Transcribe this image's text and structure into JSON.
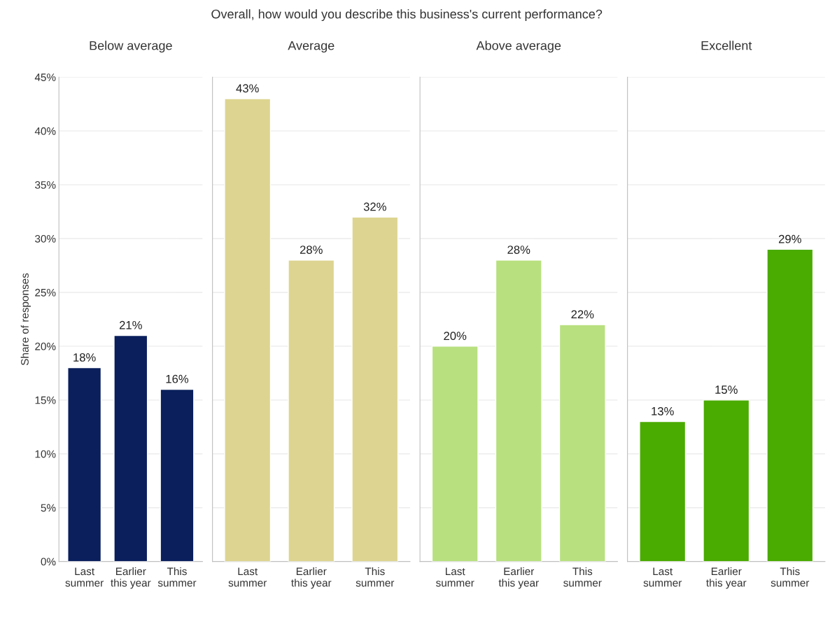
{
  "chart_data": [
    {
      "type": "bar",
      "subtitle": "Below average",
      "ylabel": "Share of responses",
      "categories": [
        "Last summer",
        "Earlier this year",
        "This summer"
      ],
      "values": [
        18,
        21,
        16
      ],
      "value_labels": [
        "18%",
        "21%",
        "16%"
      ],
      "color": "#0a1f5c",
      "ylim": [
        0,
        45
      ],
      "yticks": [
        {
          "value": 0,
          "label": "0%"
        },
        {
          "value": 5,
          "label": "5%"
        },
        {
          "value": 10,
          "label": "10%"
        },
        {
          "value": 15,
          "label": "15%"
        },
        {
          "value": 20,
          "label": "20%"
        },
        {
          "value": 25,
          "label": "25%"
        },
        {
          "value": 30,
          "label": "30%"
        },
        {
          "value": 35,
          "label": "35%"
        },
        {
          "value": 40,
          "label": "40%"
        },
        {
          "value": 45,
          "label": "45%"
        }
      ],
      "grid": "y"
    },
    {
      "type": "bar",
      "title": "Overall, how would you describe this business's current performance?",
      "subtitle": "Average",
      "categories": [
        "Last summer",
        "Earlier this year",
        "This summer"
      ],
      "values": [
        43,
        28,
        32
      ],
      "value_labels": [
        "43%",
        "28%",
        "32%"
      ],
      "color": "#ddd491",
      "ylim": [
        0,
        45
      ],
      "yticks": [
        {
          "value": 0,
          "label": null
        },
        {
          "value": 5,
          "label": null
        },
        {
          "value": 10,
          "label": null
        },
        {
          "value": 15,
          "label": null
        },
        {
          "value": 20,
          "label": null
        },
        {
          "value": 25,
          "label": null
        },
        {
          "value": 30,
          "label": null
        },
        {
          "value": 35,
          "label": null
        },
        {
          "value": 40,
          "label": null
        },
        {
          "value": 45,
          "label": null
        }
      ],
      "grid": "y",
      "tick_labels": "x"
    },
    {
      "type": "bar",
      "subtitle": "Above average",
      "categories": [
        "Last summer",
        "Earlier this year",
        "This summer"
      ],
      "values": [
        20,
        28,
        22
      ],
      "value_labels": [
        "20%",
        "28%",
        "22%"
      ],
      "color": "#b8e07f",
      "ylim": [
        0,
        45
      ],
      "yticks": [
        {
          "value": 0,
          "label": null
        },
        {
          "value": 5,
          "label": null
        },
        {
          "value": 10,
          "label": null
        },
        {
          "value": 15,
          "label": null
        },
        {
          "value": 20,
          "label": null
        },
        {
          "value": 25,
          "label": null
        },
        {
          "value": 30,
          "label": null
        },
        {
          "value": 35,
          "label": null
        },
        {
          "value": 40,
          "label": null
        },
        {
          "value": 45,
          "label": null
        }
      ],
      "grid": "y",
      "tick_labels": "x"
    },
    {
      "type": "bar",
      "subtitle": "Excellent",
      "categories": [
        "Last summer",
        "Earlier this year",
        "This summer"
      ],
      "values": [
        13,
        15,
        29
      ],
      "value_labels": [
        "13%",
        "15%",
        "29%"
      ],
      "color": "#4aab00",
      "ylim": [
        0,
        45
      ],
      "yticks": [
        {
          "value": 0,
          "label": null
        },
        {
          "value": 5,
          "label": null
        },
        {
          "value": 10,
          "label": null
        },
        {
          "value": 15,
          "label": null
        },
        {
          "value": 20,
          "label": null
        },
        {
          "value": 25,
          "label": null
        },
        {
          "value": 30,
          "label": null
        },
        {
          "value": 35,
          "label": null
        },
        {
          "value": 40,
          "label": null
        },
        {
          "value": 45,
          "label": null
        }
      ],
      "grid": "y",
      "tick_labels": "x"
    }
  ]
}
